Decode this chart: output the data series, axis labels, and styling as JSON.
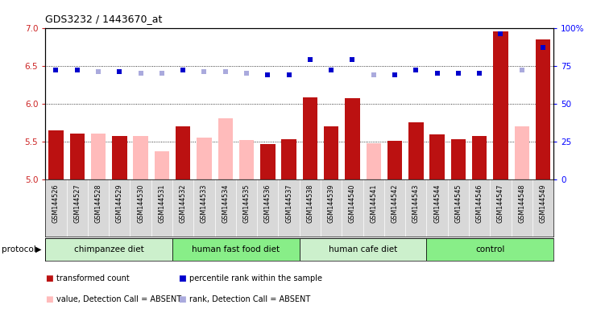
{
  "title": "GDS3232 / 1443670_at",
  "samples": [
    "GSM144526",
    "GSM144527",
    "GSM144528",
    "GSM144529",
    "GSM144530",
    "GSM144531",
    "GSM144532",
    "GSM144533",
    "GSM144534",
    "GSM144535",
    "GSM144536",
    "GSM144537",
    "GSM144538",
    "GSM144539",
    "GSM144540",
    "GSM144541",
    "GSM144542",
    "GSM144543",
    "GSM144544",
    "GSM144545",
    "GSM144546",
    "GSM144547",
    "GSM144548",
    "GSM144549"
  ],
  "bar_values": [
    5.65,
    5.6,
    5.6,
    5.57,
    5.57,
    5.37,
    5.7,
    5.55,
    5.8,
    5.52,
    5.47,
    5.53,
    6.08,
    5.7,
    6.07,
    5.48,
    5.51,
    5.75,
    5.59,
    5.53,
    5.57,
    6.95,
    5.7,
    6.85
  ],
  "rank_values": [
    72,
    72,
    71,
    71,
    70,
    70,
    72,
    71,
    71,
    70,
    69,
    69,
    79,
    72,
    79,
    69,
    69,
    72,
    70,
    70,
    70,
    96,
    72,
    87
  ],
  "absent_mask": [
    false,
    false,
    true,
    false,
    true,
    true,
    false,
    true,
    true,
    true,
    false,
    false,
    false,
    false,
    false,
    true,
    false,
    false,
    false,
    false,
    false,
    false,
    true,
    false
  ],
  "groups": [
    {
      "label": "chimpanzee diet",
      "start": 0,
      "end": 6,
      "color": "#ccf0cc"
    },
    {
      "label": "human fast food diet",
      "start": 6,
      "end": 12,
      "color": "#88ee88"
    },
    {
      "label": "human cafe diet",
      "start": 12,
      "end": 18,
      "color": "#ccf0cc"
    },
    {
      "label": "control",
      "start": 18,
      "end": 24,
      "color": "#88ee88"
    }
  ],
  "ylim_left": [
    5.0,
    7.0
  ],
  "ylim_right": [
    0,
    100
  ],
  "yticks_left": [
    5.0,
    5.5,
    6.0,
    6.5,
    7.0
  ],
  "yticks_right": [
    0,
    25,
    50,
    75,
    100
  ],
  "bar_color_present": "#bb1111",
  "bar_color_absent": "#ffbbbb",
  "rank_color_present": "#0000cc",
  "rank_color_absent": "#aaaadd",
  "xtick_bg": "#d8d8d8",
  "plot_bg": "#ffffff"
}
